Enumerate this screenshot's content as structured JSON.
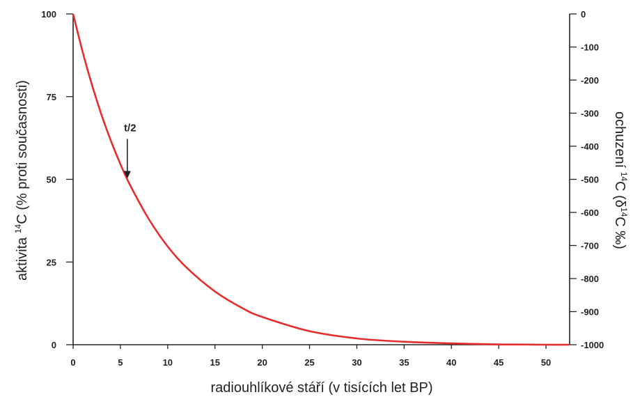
{
  "chart_data": {
    "type": "line",
    "xlabel": "radiouhlíkové stáří (v tisících let BP)",
    "ylabel_left_prefix": "aktivita ",
    "ylabel_left_sup": "14",
    "ylabel_left_suffix": "C (% proti současnosti)",
    "ylabel_right_prefix": "ochuzení ",
    "ylabel_right_sup1": "14",
    "ylabel_right_mid": "C (δ",
    "ylabel_right_sup2": "14",
    "ylabel_right_suffix": "C ‰)",
    "xlim": [
      0,
      52.5
    ],
    "ylim_left": [
      0,
      100
    ],
    "ylim_right": [
      -1000,
      0
    ],
    "x_ticks": [
      "0",
      "5",
      "10",
      "15",
      "20",
      "25",
      "30",
      "35",
      "40",
      "45",
      "50"
    ],
    "y_left_ticks": [
      "0",
      "25",
      "50",
      "75",
      "100"
    ],
    "y_right_ticks": [
      "-1000",
      "-900",
      "-800",
      "-700",
      "-600",
      "-500",
      "-400",
      "-300",
      "-200",
      "-100",
      "0"
    ],
    "series": [
      {
        "x": [
          0,
          1,
          2,
          3,
          4,
          5,
          6,
          8,
          10,
          12,
          15,
          18,
          20,
          25,
          30,
          35,
          40,
          45,
          48,
          50,
          52.5
        ],
        "y": [
          100,
          88.6,
          78.5,
          69.5,
          61.6,
          54.6,
          48.4,
          38.0,
          29.7,
          23.3,
          16.1,
          10.9,
          8.4,
          4.1,
          1.9,
          0.9,
          0.4,
          0.1,
          0.05,
          0.0,
          0.0
        ],
        "color": "#e62d2d"
      }
    ],
    "annotation": {
      "label": "t/2",
      "x": 5.73,
      "y": 50
    },
    "grid": false,
    "legend": "none"
  }
}
